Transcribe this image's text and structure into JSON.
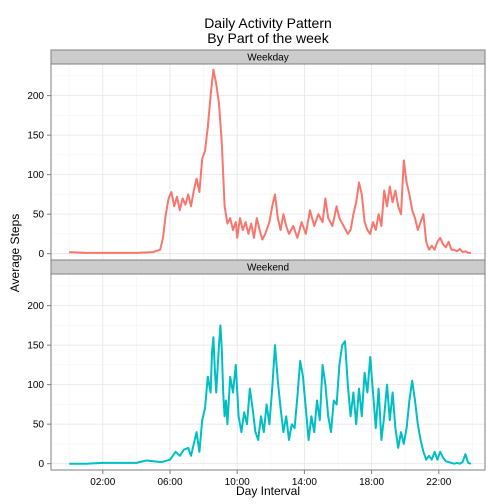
{
  "chart_data": {
    "type": "line",
    "title": "Daily Activity Pattern\nBy Part of the week",
    "title_lines": [
      "Daily Activity Pattern",
      "By Part of the week"
    ],
    "xlabel": "Day Interval",
    "ylabel": "Average Steps",
    "xlim": [
      "00:00",
      "23:55"
    ],
    "ylim": [
      -8,
      240
    ],
    "x_ticks": [
      "02:00",
      "06:00",
      "10:00",
      "14:00",
      "18:00",
      "22:00"
    ],
    "y_ticks": [
      0,
      50,
      100,
      150,
      200
    ],
    "grid": true,
    "legend": "none",
    "panels": [
      {
        "name": "Weekday",
        "color": "#F8766D",
        "points": [
          [
            "00:00",
            2
          ],
          [
            "01:00",
            1
          ],
          [
            "02:00",
            1
          ],
          [
            "03:00",
            1
          ],
          [
            "04:00",
            1
          ],
          [
            "05:00",
            2
          ],
          [
            "05:25",
            5
          ],
          [
            "05:35",
            20
          ],
          [
            "05:45",
            50
          ],
          [
            "05:55",
            70
          ],
          [
            "06:05",
            78
          ],
          [
            "06:15",
            60
          ],
          [
            "06:25",
            72
          ],
          [
            "06:35",
            55
          ],
          [
            "06:45",
            70
          ],
          [
            "06:55",
            62
          ],
          [
            "07:05",
            75
          ],
          [
            "07:15",
            60
          ],
          [
            "07:25",
            80
          ],
          [
            "07:35",
            95
          ],
          [
            "07:45",
            78
          ],
          [
            "07:55",
            120
          ],
          [
            "08:05",
            130
          ],
          [
            "08:15",
            160
          ],
          [
            "08:25",
            200
          ],
          [
            "08:35",
            233
          ],
          [
            "08:45",
            215
          ],
          [
            "08:55",
            190
          ],
          [
            "09:05",
            140
          ],
          [
            "09:10",
            100
          ],
          [
            "09:15",
            60
          ],
          [
            "09:25",
            38
          ],
          [
            "09:35",
            45
          ],
          [
            "09:45",
            30
          ],
          [
            "09:55",
            40
          ],
          [
            "10:00",
            20
          ],
          [
            "10:10",
            45
          ],
          [
            "10:20",
            30
          ],
          [
            "10:30",
            40
          ],
          [
            "10:40",
            25
          ],
          [
            "10:50",
            38
          ],
          [
            "11:00",
            20
          ],
          [
            "11:10",
            45
          ],
          [
            "11:20",
            30
          ],
          [
            "11:30",
            18
          ],
          [
            "11:40",
            25
          ],
          [
            "11:55",
            40
          ],
          [
            "12:05",
            60
          ],
          [
            "12:15",
            75
          ],
          [
            "12:25",
            45
          ],
          [
            "12:35",
            30
          ],
          [
            "12:45",
            50
          ],
          [
            "12:55",
            35
          ],
          [
            "13:05",
            25
          ],
          [
            "13:20",
            35
          ],
          [
            "13:35",
            20
          ],
          [
            "13:50",
            40
          ],
          [
            "14:05",
            25
          ],
          [
            "14:20",
            55
          ],
          [
            "14:35",
            35
          ],
          [
            "14:50",
            50
          ],
          [
            "15:05",
            40
          ],
          [
            "15:15",
            70
          ],
          [
            "15:25",
            45
          ],
          [
            "15:40",
            35
          ],
          [
            "15:55",
            60
          ],
          [
            "16:05",
            45
          ],
          [
            "16:20",
            35
          ],
          [
            "16:35",
            25
          ],
          [
            "16:45",
            30
          ],
          [
            "16:55",
            50
          ],
          [
            "17:05",
            65
          ],
          [
            "17:15",
            90
          ],
          [
            "17:25",
            75
          ],
          [
            "17:35",
            40
          ],
          [
            "17:45",
            30
          ],
          [
            "17:55",
            25
          ],
          [
            "18:05",
            40
          ],
          [
            "18:15",
            30
          ],
          [
            "18:25",
            50
          ],
          [
            "18:35",
            35
          ],
          [
            "18:45",
            80
          ],
          [
            "18:55",
            60
          ],
          [
            "19:05",
            85
          ],
          [
            "19:15",
            65
          ],
          [
            "19:25",
            80
          ],
          [
            "19:35",
            60
          ],
          [
            "19:45",
            50
          ],
          [
            "19:55",
            118
          ],
          [
            "20:05",
            90
          ],
          [
            "20:15",
            75
          ],
          [
            "20:25",
            55
          ],
          [
            "20:35",
            45
          ],
          [
            "20:45",
            30
          ],
          [
            "20:55",
            40
          ],
          [
            "21:05",
            50
          ],
          [
            "21:15",
            15
          ],
          [
            "21:25",
            5
          ],
          [
            "21:35",
            10
          ],
          [
            "21:45",
            5
          ],
          [
            "21:55",
            15
          ],
          [
            "22:05",
            20
          ],
          [
            "22:15",
            12
          ],
          [
            "22:25",
            8
          ],
          [
            "22:35",
            15
          ],
          [
            "22:45",
            5
          ],
          [
            "22:55",
            5
          ],
          [
            "23:05",
            3
          ],
          [
            "23:15",
            6
          ],
          [
            "23:25",
            2
          ],
          [
            "23:35",
            3
          ],
          [
            "23:45",
            1
          ],
          [
            "23:55",
            1
          ]
        ]
      },
      {
        "name": "Weekend",
        "color": "#00BFC4",
        "points": [
          [
            "00:00",
            0
          ],
          [
            "01:00",
            0
          ],
          [
            "02:00",
            1
          ],
          [
            "03:00",
            1
          ],
          [
            "04:00",
            1
          ],
          [
            "04:35",
            4
          ],
          [
            "05:00",
            3
          ],
          [
            "05:30",
            2
          ],
          [
            "06:00",
            5
          ],
          [
            "06:20",
            15
          ],
          [
            "06:35",
            10
          ],
          [
            "06:50",
            18
          ],
          [
            "07:05",
            20
          ],
          [
            "07:15",
            10
          ],
          [
            "07:25",
            25
          ],
          [
            "07:35",
            40
          ],
          [
            "07:45",
            15
          ],
          [
            "07:55",
            55
          ],
          [
            "08:05",
            70
          ],
          [
            "08:15",
            110
          ],
          [
            "08:25",
            90
          ],
          [
            "08:30",
            140
          ],
          [
            "08:35",
            160
          ],
          [
            "08:40",
            120
          ],
          [
            "08:45",
            90
          ],
          [
            "08:55",
            150
          ],
          [
            "09:00",
            175
          ],
          [
            "09:05",
            145
          ],
          [
            "09:10",
            90
          ],
          [
            "09:15",
            60
          ],
          [
            "09:20",
            80
          ],
          [
            "09:25",
            50
          ],
          [
            "09:35",
            110
          ],
          [
            "09:45",
            90
          ],
          [
            "09:55",
            125
          ],
          [
            "10:05",
            60
          ],
          [
            "10:15",
            40
          ],
          [
            "10:25",
            65
          ],
          [
            "10:35",
            50
          ],
          [
            "10:45",
            95
          ],
          [
            "10:55",
            70
          ],
          [
            "11:05",
            40
          ],
          [
            "11:15",
            30
          ],
          [
            "11:25",
            60
          ],
          [
            "11:35",
            40
          ],
          [
            "11:45",
            75
          ],
          [
            "11:55",
            50
          ],
          [
            "12:05",
            95
          ],
          [
            "12:15",
            150
          ],
          [
            "12:25",
            105
          ],
          [
            "12:35",
            70
          ],
          [
            "12:45",
            40
          ],
          [
            "12:55",
            60
          ],
          [
            "13:05",
            30
          ],
          [
            "13:15",
            50
          ],
          [
            "13:25",
            45
          ],
          [
            "13:35",
            85
          ],
          [
            "13:45",
            130
          ],
          [
            "13:55",
            110
          ],
          [
            "14:05",
            70
          ],
          [
            "14:15",
            30
          ],
          [
            "14:25",
            60
          ],
          [
            "14:35",
            40
          ],
          [
            "14:45",
            80
          ],
          [
            "14:55",
            55
          ],
          [
            "15:05",
            125
          ],
          [
            "15:15",
            100
          ],
          [
            "15:25",
            60
          ],
          [
            "15:35",
            40
          ],
          [
            "15:45",
            80
          ],
          [
            "15:55",
            75
          ],
          [
            "16:05",
            125
          ],
          [
            "16:15",
            150
          ],
          [
            "16:25",
            155
          ],
          [
            "16:35",
            100
          ],
          [
            "16:45",
            60
          ],
          [
            "16:55",
            90
          ],
          [
            "17:05",
            50
          ],
          [
            "17:15",
            95
          ],
          [
            "17:25",
            60
          ],
          [
            "17:35",
            115
          ],
          [
            "17:45",
            90
          ],
          [
            "17:55",
            135
          ],
          [
            "18:05",
            90
          ],
          [
            "18:15",
            45
          ],
          [
            "18:25",
            95
          ],
          [
            "18:35",
            30
          ],
          [
            "18:45",
            60
          ],
          [
            "18:55",
            100
          ],
          [
            "19:05",
            55
          ],
          [
            "19:15",
            90
          ],
          [
            "19:25",
            45
          ],
          [
            "19:35",
            20
          ],
          [
            "19:45",
            40
          ],
          [
            "19:55",
            25
          ],
          [
            "20:05",
            45
          ],
          [
            "20:15",
            80
          ],
          [
            "20:25",
            105
          ],
          [
            "20:35",
            80
          ],
          [
            "20:45",
            50
          ],
          [
            "20:55",
            30
          ],
          [
            "21:05",
            15
          ],
          [
            "21:15",
            5
          ],
          [
            "21:25",
            10
          ],
          [
            "21:35",
            5
          ],
          [
            "21:45",
            15
          ],
          [
            "21:55",
            5
          ],
          [
            "22:05",
            15
          ],
          [
            "22:15",
            8
          ],
          [
            "22:25",
            3
          ],
          [
            "22:35",
            2
          ],
          [
            "22:45",
            1
          ],
          [
            "22:55",
            0
          ],
          [
            "23:05",
            1
          ],
          [
            "23:15",
            0
          ],
          [
            "23:25",
            2
          ],
          [
            "23:35",
            12
          ],
          [
            "23:45",
            1
          ],
          [
            "23:55",
            0
          ]
        ]
      }
    ]
  }
}
